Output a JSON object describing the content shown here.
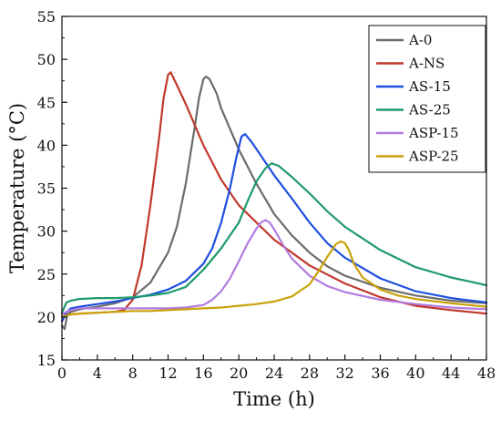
{
  "chart_data": {
    "type": "line",
    "xlabel": "Time (h)",
    "ylabel": "Temperature (°C)",
    "xlim": [
      0,
      48
    ],
    "ylim": [
      15,
      55
    ],
    "xticks": [
      0,
      4,
      8,
      12,
      16,
      20,
      24,
      28,
      32,
      36,
      40,
      44,
      48
    ],
    "yticks": [
      15,
      20,
      25,
      30,
      35,
      40,
      45,
      50,
      55
    ],
    "grid": false,
    "legend_position": "top-right",
    "series": [
      {
        "name": "A-0",
        "color": "#6b6b6b",
        "x": [
          0,
          0.3,
          0.6,
          1,
          2,
          4,
          6,
          8,
          10,
          12,
          13,
          14,
          15,
          15.5,
          16,
          16.3,
          16.7,
          17.5,
          18,
          20,
          22,
          24,
          26,
          28,
          30,
          32,
          36,
          40,
          44,
          48
        ],
        "y": [
          19,
          18.6,
          20.2,
          20.6,
          20.9,
          21.2,
          21.6,
          22.3,
          24.0,
          27.5,
          30.5,
          35.5,
          42.0,
          45.5,
          47.7,
          48.0,
          47.7,
          46.0,
          44.3,
          39.5,
          35.5,
          32.0,
          29.5,
          27.5,
          25.9,
          24.8,
          23.4,
          22.5,
          21.9,
          21.6
        ]
      },
      {
        "name": "A-NS",
        "color": "#c0392b",
        "x": [
          0,
          0.3,
          1,
          2,
          4,
          6,
          7,
          8,
          9,
          10,
          11,
          11.5,
          12,
          12.3,
          13,
          14,
          16,
          18,
          20,
          24,
          28,
          32,
          36,
          40,
          44,
          48
        ],
        "y": [
          19.5,
          20.2,
          20.3,
          20.4,
          20.5,
          20.6,
          20.8,
          22.0,
          26.0,
          33.0,
          41.0,
          45.5,
          48.2,
          48.5,
          47.0,
          44.8,
          40.0,
          36.0,
          33.0,
          29.0,
          26.0,
          23.9,
          22.3,
          21.3,
          20.8,
          20.4
        ]
      },
      {
        "name": "AS-15",
        "color": "#1f4fe0",
        "x": [
          0,
          0.5,
          1,
          2,
          4,
          6,
          8,
          10,
          12,
          14,
          16,
          17,
          18,
          19,
          19.7,
          20.3,
          20.7,
          21.5,
          22.5,
          24,
          26,
          28,
          30,
          32,
          36,
          40,
          44,
          48
        ],
        "y": [
          19.5,
          20.5,
          21.0,
          21.2,
          21.5,
          21.8,
          22.2,
          22.6,
          23.2,
          24.2,
          26.2,
          28.0,
          31.0,
          35.0,
          38.5,
          41.0,
          41.3,
          40.3,
          38.8,
          36.5,
          33.8,
          31.0,
          28.6,
          26.9,
          24.5,
          23.0,
          22.2,
          21.7
        ]
      },
      {
        "name": "AS-25",
        "color": "#1f9a6a",
        "x": [
          0,
          0.5,
          1,
          2,
          4,
          6,
          8,
          10,
          12,
          14,
          16,
          18,
          20,
          21,
          22,
          23,
          23.7,
          24.5,
          26,
          28,
          30,
          32,
          36,
          40,
          44,
          48
        ],
        "y": [
          20.5,
          21.7,
          21.9,
          22.1,
          22.2,
          22.2,
          22.3,
          22.5,
          22.8,
          23.5,
          25.5,
          28.0,
          31.0,
          33.5,
          35.8,
          37.3,
          37.9,
          37.6,
          36.3,
          34.4,
          32.3,
          30.5,
          27.8,
          25.8,
          24.6,
          23.7
        ]
      },
      {
        "name": "ASP-15",
        "color": "#b27be0",
        "x": [
          0,
          0.5,
          1,
          2,
          4,
          6,
          8,
          10,
          12,
          14,
          16,
          17,
          18,
          19,
          20,
          21,
          22,
          22.5,
          23,
          23.5,
          24,
          25,
          26,
          28,
          30,
          32,
          36,
          40,
          44,
          48
        ],
        "y": [
          20.3,
          20.6,
          20.8,
          21.0,
          21.0,
          21.0,
          21.0,
          21.0,
          21.0,
          21.1,
          21.4,
          22.0,
          23.0,
          24.5,
          26.5,
          28.6,
          30.3,
          31.0,
          31.3,
          31.0,
          30.2,
          28.4,
          26.8,
          24.8,
          23.6,
          22.9,
          22.0,
          21.5,
          21.1,
          20.9
        ]
      },
      {
        "name": "ASP-25",
        "color": "#c9a20a",
        "x": [
          0,
          1,
          2,
          4,
          6,
          8,
          10,
          12,
          14,
          16,
          18,
          20,
          22,
          24,
          26,
          28,
          29,
          30,
          31,
          31.5,
          32,
          32.5,
          33,
          34,
          36,
          38,
          40,
          44,
          48
        ],
        "y": [
          20.0,
          20.3,
          20.4,
          20.5,
          20.6,
          20.7,
          20.7,
          20.8,
          20.9,
          21.0,
          21.1,
          21.3,
          21.5,
          21.8,
          22.4,
          23.8,
          25.3,
          27.0,
          28.5,
          28.8,
          28.6,
          27.7,
          26.2,
          24.6,
          23.2,
          22.5,
          22.1,
          21.6,
          21.2
        ]
      }
    ]
  }
}
